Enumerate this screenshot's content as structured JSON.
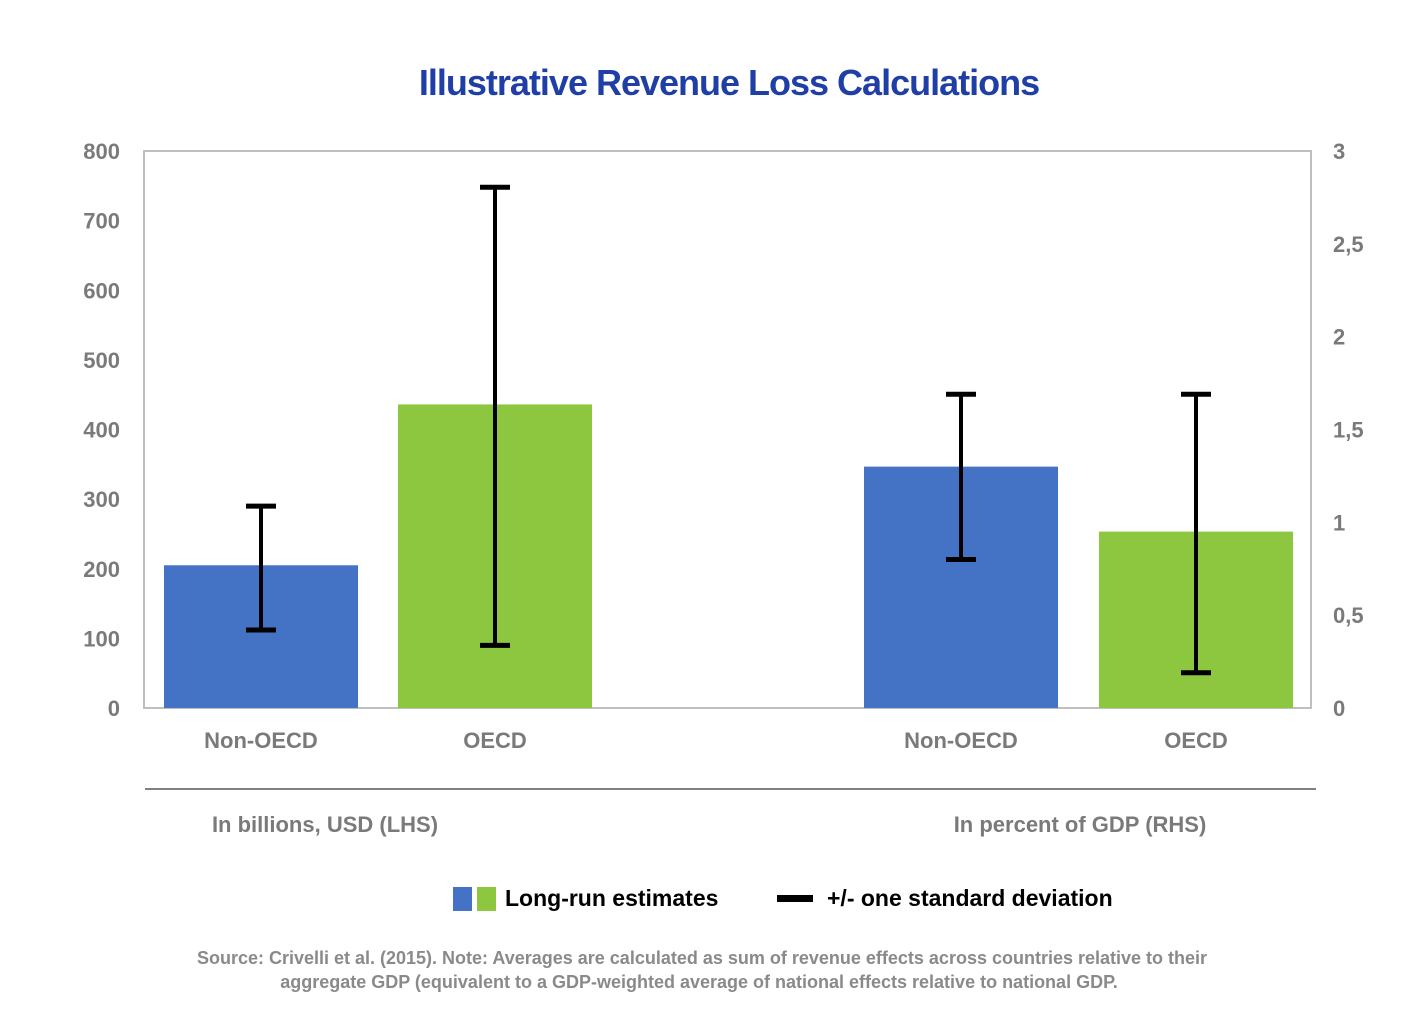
{
  "chart_data": {
    "type": "bar",
    "title": "Illustrative Revenue Loss Calculations",
    "groups": [
      {
        "label": "In billions, USD (LHS)",
        "axis": "left",
        "categories": [
          "Non-OECD",
          "OECD"
        ],
        "values": [
          205,
          436
        ],
        "error_low": [
          112,
          90
        ],
        "error_high": [
          290,
          748
        ]
      },
      {
        "label": "In percent of GDP (RHS)",
        "axis": "right",
        "categories": [
          "Non-OECD",
          "OECD"
        ],
        "values": [
          1.3,
          0.95
        ],
        "error_low": [
          0.8,
          0.19
        ],
        "error_high": [
          1.69,
          1.69
        ]
      }
    ],
    "left_axis": {
      "ylim": [
        0,
        800
      ],
      "ticks": [
        "0",
        "100",
        "200",
        "300",
        "400",
        "500",
        "600",
        "700",
        "800"
      ],
      "tick_values": [
        0,
        100,
        200,
        300,
        400,
        500,
        600,
        700,
        800
      ]
    },
    "right_axis": {
      "ylim": [
        0,
        3
      ],
      "ticks": [
        "0",
        "0,5",
        "1",
        "1,5",
        "2",
        "2,5",
        "3"
      ],
      "tick_values": [
        0,
        0.5,
        1,
        1.5,
        2,
        2.5,
        3
      ]
    },
    "colors": {
      "Non-OECD": "#4472c4",
      "OECD": "#8dc63f",
      "error": "#000000",
      "title": "#1f3ea6",
      "axis_text": "#7a7a7a"
    },
    "legend": {
      "placement": "bottom",
      "entries": [
        {
          "label": "Long-run estimates",
          "swatches": [
            "#4472c4",
            "#8dc63f"
          ]
        },
        {
          "label": "+/- one standard deviation",
          "swatch": "#000000"
        }
      ]
    },
    "grid": false,
    "note_lines": [
      "Source: Crivelli et al. (2015). Note: Averages are calculated as sum of revenue effects across countries relative to their",
      "aggregate GDP (equivalent to a GDP-weighted average of national effects relative to national GDP."
    ]
  }
}
